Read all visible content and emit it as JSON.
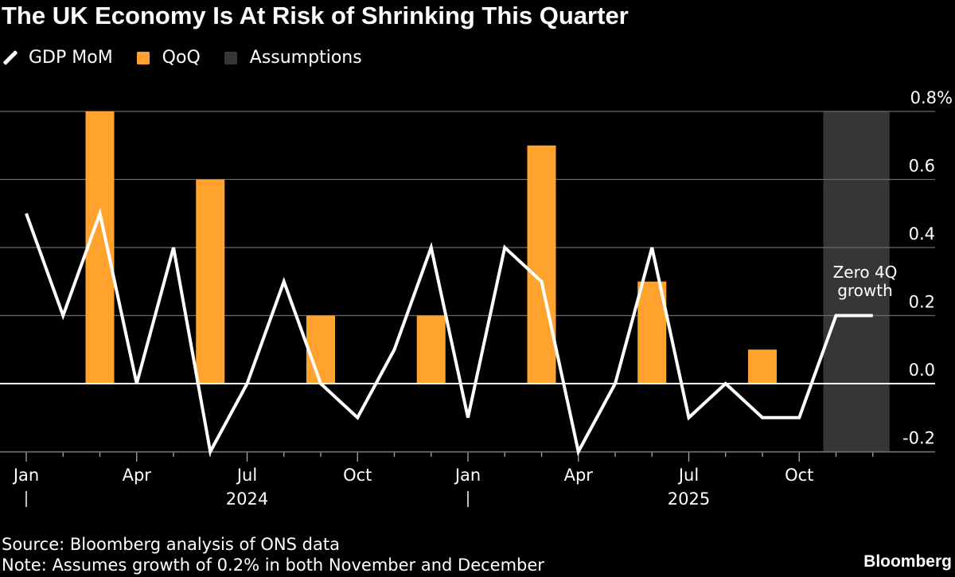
{
  "chart_data": {
    "type": "bar+line",
    "title": "The UK Economy Is At Risk of Shrinking This Quarter",
    "legend": [
      {
        "name": "GDP MoM",
        "kind": "line",
        "color": "#ffffff"
      },
      {
        "name": "QoQ",
        "kind": "bar",
        "color": "#ffa32e"
      },
      {
        "name": "Assumptions",
        "kind": "shade",
        "color": "#363636"
      }
    ],
    "legend_placement": "top-left",
    "x_months": [
      "2024-01",
      "2024-02",
      "2024-03",
      "2024-04",
      "2024-05",
      "2024-06",
      "2024-07",
      "2024-08",
      "2024-09",
      "2024-10",
      "2024-11",
      "2024-12",
      "2025-01",
      "2025-02",
      "2025-03",
      "2025-04",
      "2025-05",
      "2025-06",
      "2025-07",
      "2025-08",
      "2025-09",
      "2025-10",
      "2025-11",
      "2025-12"
    ],
    "series": [
      {
        "name": "GDP MoM",
        "type": "line",
        "values": [
          0.5,
          0.2,
          0.5,
          0.0,
          0.4,
          -0.2,
          0.0,
          0.3,
          0.0,
          -0.1,
          0.1,
          0.4,
          -0.1,
          0.4,
          0.3,
          -0.2,
          0.0,
          0.4,
          -0.1,
          0.0,
          -0.1,
          -0.1,
          0.2,
          0.2
        ]
      },
      {
        "name": "QoQ",
        "type": "bar",
        "months": [
          "2024-03",
          "2024-06",
          "2024-09",
          "2024-12",
          "2025-03",
          "2025-06",
          "2025-09"
        ],
        "values": [
          0.8,
          0.6,
          0.2,
          0.2,
          0.7,
          0.3,
          0.1
        ]
      }
    ],
    "assumptions_range": [
      "2025-11",
      "2025-12"
    ],
    "annotation": {
      "line1": "Zero 4Q",
      "line2": "growth"
    },
    "y_axis": {
      "ticks": [
        "0.8%",
        "0.6",
        "0.4",
        "0.2",
        "0.0",
        "-0.2"
      ],
      "tick_values": [
        0.8,
        0.6,
        0.4,
        0.2,
        0.0,
        -0.2
      ],
      "range": [
        -0.2,
        0.8
      ],
      "position": "right",
      "grid": true
    },
    "x_axis": {
      "tick_labels": [
        {
          "month": "2024-01",
          "label": "Jan"
        },
        {
          "month": "2024-04",
          "label": "Apr"
        },
        {
          "month": "2024-07",
          "label": "Jul"
        },
        {
          "month": "2024-10",
          "label": "Oct"
        },
        {
          "month": "2025-01",
          "label": "Jan"
        },
        {
          "month": "2025-04",
          "label": "Apr"
        },
        {
          "month": "2025-07",
          "label": "Jul"
        },
        {
          "month": "2025-10",
          "label": "Oct"
        }
      ],
      "years": [
        {
          "label": "2024",
          "month": "2024-07"
        },
        {
          "label": "2025",
          "month": "2025-07"
        }
      ]
    }
  },
  "footer": {
    "source": "Source: Bloomberg analysis of ONS data",
    "note": "Note: Assumes growth of 0.2% in both November and December",
    "brand": "Bloomberg"
  }
}
